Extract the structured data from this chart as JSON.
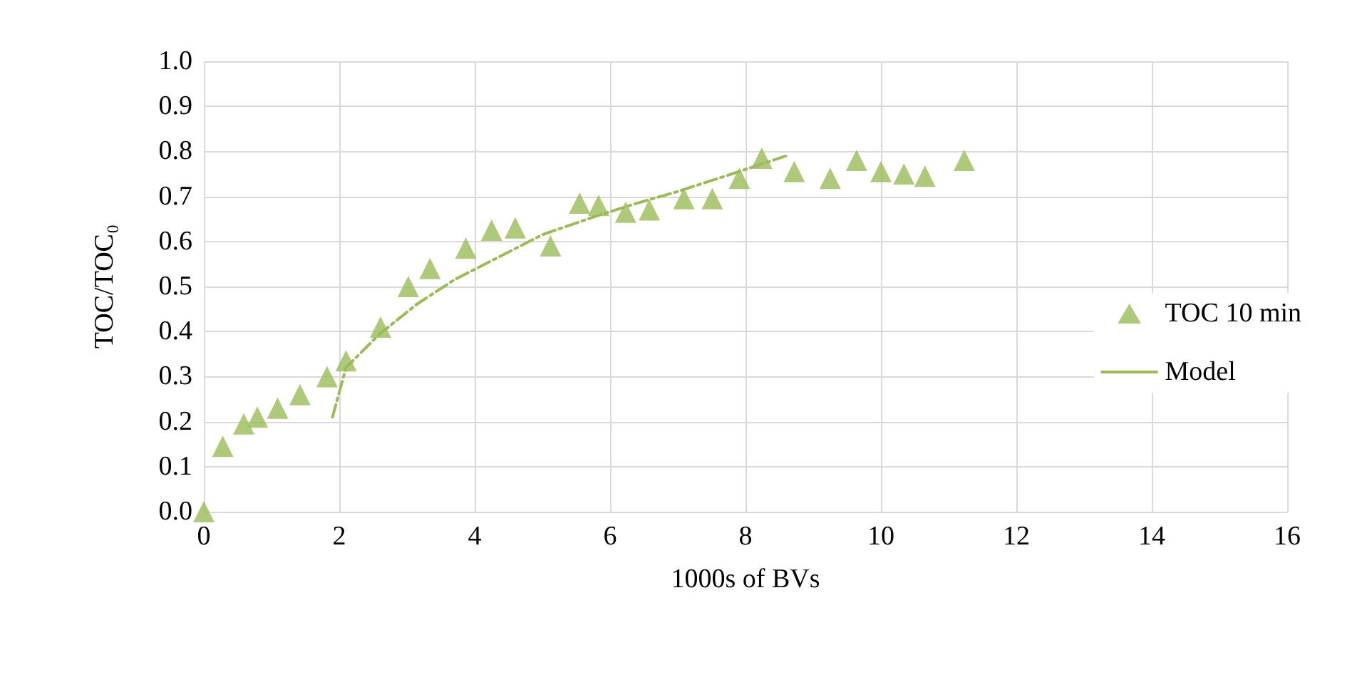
{
  "chart_data": {
    "type": "scatter",
    "xlabel": "1000s of BVs",
    "ylabel": "TOC/TOC₀",
    "xlim": [
      0,
      16
    ],
    "xticks": [
      0,
      2,
      4,
      6,
      8,
      10,
      12,
      14,
      16
    ],
    "ylim": [
      0,
      1
    ],
    "yticks": [
      {
        "value": 0,
        "label": "0.0"
      },
      {
        "value": 0.1,
        "label": "0.1"
      },
      {
        "value": 0.2,
        "label": "0.2"
      },
      {
        "value": 0.3,
        "label": "0.3"
      },
      {
        "value": 0.4,
        "label": "0.4"
      },
      {
        "value": 0.5,
        "label": "0.5"
      },
      {
        "value": 0.6,
        "label": "0.6"
      },
      {
        "value": 0.7,
        "label": "0.7"
      },
      {
        "value": 0.8,
        "label": "0.8"
      },
      {
        "value": 0.9,
        "label": "0.9"
      },
      {
        "value": 1,
        "label": "1.0"
      }
    ],
    "grid": true,
    "legend": "right",
    "series": [
      {
        "name": "TOC 10 min",
        "marker": "triangle",
        "color": "#9bbb59",
        "x": [
          0,
          0.28,
          0.59,
          0.79,
          1.09,
          1.42,
          1.82,
          2.1,
          2.61,
          3.02,
          3.34,
          3.87,
          4.25,
          4.6,
          5.12,
          5.55,
          5.83,
          6.23,
          6.58,
          7.09,
          7.51,
          7.91,
          8.24,
          8.72,
          9.25,
          9.64,
          10.0,
          10.34,
          10.65,
          11.23
        ],
        "values": [
          0,
          0.145,
          0.195,
          0.21,
          0.23,
          0.26,
          0.3,
          0.335,
          0.41,
          0.5,
          0.54,
          0.585,
          0.625,
          0.63,
          0.59,
          0.685,
          0.68,
          0.665,
          0.67,
          0.695,
          0.695,
          0.74,
          0.785,
          0.755,
          0.74,
          0.78,
          0.755,
          0.75,
          0.745,
          0.78
        ]
      },
      {
        "name": "Model",
        "type": "line",
        "marker": "none",
        "line_style": "dashed",
        "color": "#9bbb59",
        "x": [
          1.9,
          2.1,
          2.6,
          3.14,
          3.7,
          4.35,
          5.0,
          5.77,
          6.4,
          6.98,
          7.8,
          8.6
        ],
        "values": [
          0.21,
          0.32,
          0.395,
          0.46,
          0.515,
          0.565,
          0.615,
          0.655,
          0.685,
          0.71,
          0.75,
          0.79
        ]
      }
    ]
  }
}
